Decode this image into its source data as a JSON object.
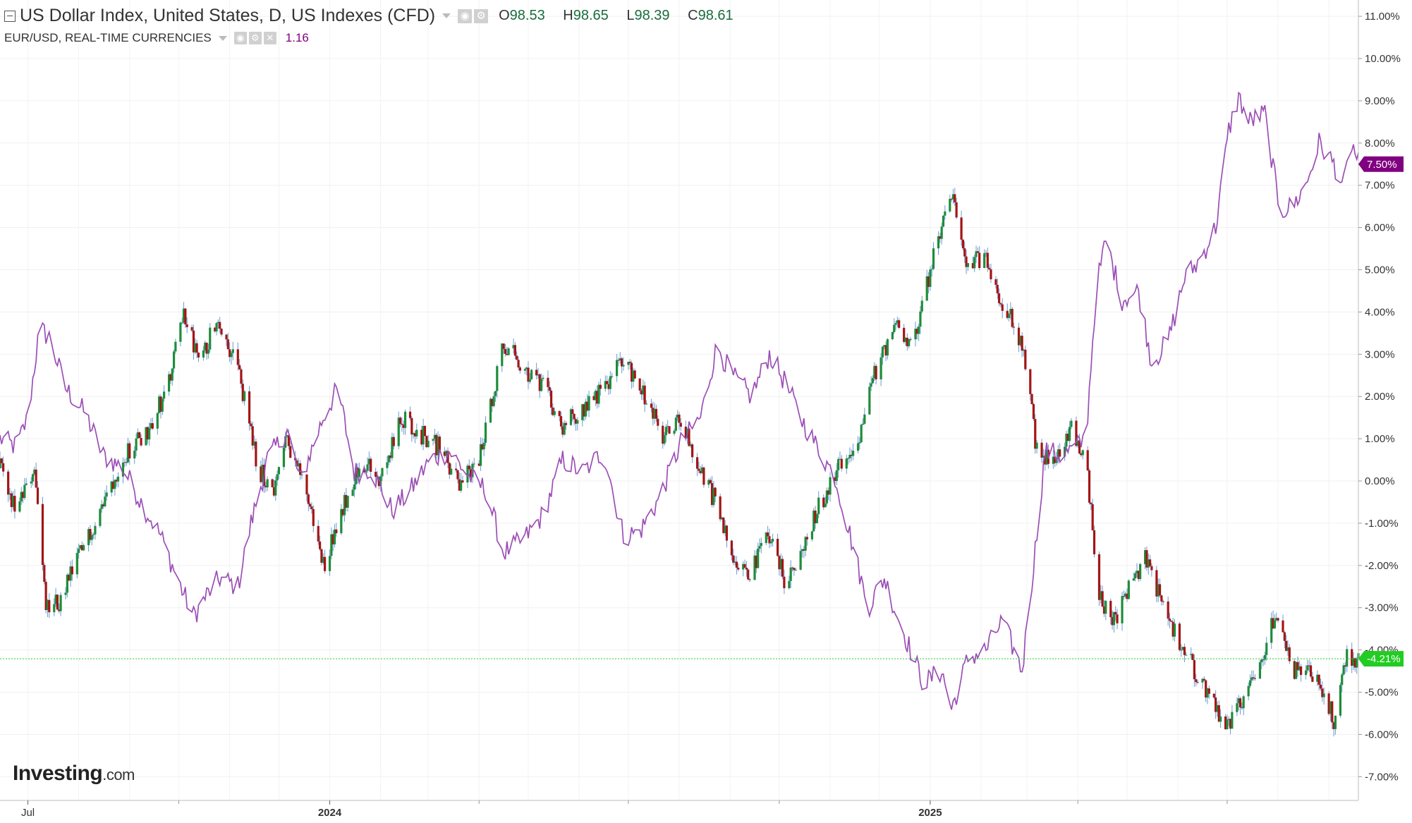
{
  "header": {
    "title": "US Dollar Index, United States, D, US Indexes (CFD)",
    "ohlc": [
      {
        "key": "O",
        "value": "98.53"
      },
      {
        "key": "H",
        "value": "98.65"
      },
      {
        "key": "L",
        "value": "98.39"
      },
      {
        "key": "C",
        "value": "98.61"
      }
    ],
    "compare_title": "EUR/USD, REAL-TIME CURRENCIES",
    "compare_value": "1.16"
  },
  "logo": {
    "main": "Investing",
    "suffix": ".com"
  },
  "chart_data": {
    "type": "line",
    "title": "US Dollar Index, United States, D, US Indexes (CFD)",
    "ylim": [
      -7.5,
      11.5
    ],
    "y_tick_labels": [
      "11.00%",
      "10.00%",
      "9.00%",
      "8.00%",
      "7.00%",
      "6.00%",
      "5.00%",
      "4.00%",
      "3.00%",
      "2.00%",
      "1.00%",
      "0.00%",
      "-1.00%",
      "-2.00%",
      "-3.00%",
      "-4.00%",
      "-5.00%",
      "-6.00%",
      "-7.00%"
    ],
    "y_ticks": [
      11,
      10,
      9,
      8,
      7,
      6,
      5,
      4,
      3,
      2,
      1,
      0,
      -1,
      -2,
      -3,
      -4,
      -5,
      -6,
      -7
    ],
    "x_tick_labels": [
      "Jul",
      "2024",
      "2025"
    ],
    "x_tick_dates": [
      "2023-07-01",
      "2024-01-01",
      "2025-01-01"
    ],
    "x_range": [
      "2023-06-14",
      "2025-09-19"
    ],
    "grid": true,
    "colors": {
      "up": "#1e8c3a",
      "down": "#a31515",
      "compare": "#9b4fb5",
      "last_dxy": "#22cc22",
      "last_eur": "#800080"
    },
    "series": [
      {
        "name": "US Dollar Index",
        "last_label": "-4.21%",
        "last_value": -4.21,
        "points": [
          [
            "2023-06-14",
            0.3
          ],
          [
            "2023-06-24",
            -0.8
          ],
          [
            "2023-07-05",
            0.3
          ],
          [
            "2023-07-12",
            -3.0
          ],
          [
            "2023-07-20",
            -2.9
          ],
          [
            "2023-08-01",
            -1.8
          ],
          [
            "2023-08-15",
            -0.6
          ],
          [
            "2023-08-28",
            0.6
          ],
          [
            "2023-09-12",
            1.2
          ],
          [
            "2023-09-25",
            2.3
          ],
          [
            "2023-10-04",
            4.0
          ],
          [
            "2023-10-14",
            2.7
          ],
          [
            "2023-10-24",
            3.9
          ],
          [
            "2023-11-06",
            2.7
          ],
          [
            "2023-11-18",
            0.3
          ],
          [
            "2023-11-28",
            -0.2
          ],
          [
            "2023-12-06",
            1.0
          ],
          [
            "2023-12-18",
            -0.3
          ],
          [
            "2023-12-28",
            -2.0
          ],
          [
            "2024-01-10",
            -0.5
          ],
          [
            "2024-01-20",
            0.5
          ],
          [
            "2024-02-01",
            0.0
          ],
          [
            "2024-02-14",
            1.5
          ],
          [
            "2024-02-26",
            1.1
          ],
          [
            "2024-03-08",
            0.8
          ],
          [
            "2024-03-20",
            -0.1
          ],
          [
            "2024-04-01",
            0.5
          ],
          [
            "2024-04-16",
            3.3
          ],
          [
            "2024-04-28",
            2.7
          ],
          [
            "2024-05-10",
            2.2
          ],
          [
            "2024-05-22",
            1.3
          ],
          [
            "2024-06-03",
            1.7
          ],
          [
            "2024-06-18",
            2.3
          ],
          [
            "2024-06-28",
            2.9
          ],
          [
            "2024-07-10",
            2.1
          ],
          [
            "2024-07-22",
            1.0
          ],
          [
            "2024-08-01",
            1.5
          ],
          [
            "2024-08-12",
            0.4
          ],
          [
            "2024-08-22",
            -0.4
          ],
          [
            "2024-09-02",
            -1.7
          ],
          [
            "2024-09-14",
            -2.2
          ],
          [
            "2024-09-24",
            -1.2
          ],
          [
            "2024-10-04",
            -2.3
          ],
          [
            "2024-10-14",
            -1.8
          ],
          [
            "2024-10-25",
            -0.6
          ],
          [
            "2024-11-06",
            0.3
          ],
          [
            "2024-11-18",
            1.0
          ],
          [
            "2024-11-28",
            2.5
          ],
          [
            "2024-12-10",
            3.7
          ],
          [
            "2024-12-22",
            3.3
          ],
          [
            "2025-01-03",
            5.3
          ],
          [
            "2025-01-14",
            6.8
          ],
          [
            "2025-01-24",
            5.0
          ],
          [
            "2025-02-03",
            5.4
          ],
          [
            "2025-02-14",
            4.2
          ],
          [
            "2025-02-26",
            3.3
          ],
          [
            "2025-03-06",
            1.0
          ],
          [
            "2025-03-16",
            0.3
          ],
          [
            "2025-03-28",
            1.3
          ],
          [
            "2025-04-06",
            0.5
          ],
          [
            "2025-04-14",
            -2.8
          ],
          [
            "2025-04-24",
            -3.3
          ],
          [
            "2025-05-04",
            -2.3
          ],
          [
            "2025-05-13",
            -1.8
          ],
          [
            "2025-05-24",
            -3.2
          ],
          [
            "2025-06-06",
            -4.1
          ],
          [
            "2025-06-18",
            -5.0
          ],
          [
            "2025-06-30",
            -5.9
          ],
          [
            "2025-07-10",
            -5.2
          ],
          [
            "2025-07-21",
            -4.3
          ],
          [
            "2025-07-31",
            -3.0
          ],
          [
            "2025-08-09",
            -4.5
          ],
          [
            "2025-08-20",
            -4.6
          ],
          [
            "2025-08-30",
            -5.0
          ],
          [
            "2025-09-05",
            -5.8
          ],
          [
            "2025-09-11",
            -4.2
          ],
          [
            "2025-09-19",
            -4.21
          ]
        ]
      },
      {
        "name": "EUR/USD",
        "last_label": "7.50%",
        "last_value": 7.5,
        "points": [
          [
            "2023-06-14",
            1.0
          ],
          [
            "2023-06-24",
            0.8
          ],
          [
            "2023-07-01",
            1.5
          ],
          [
            "2023-07-08",
            3.6
          ],
          [
            "2023-07-14",
            3.4
          ],
          [
            "2023-07-24",
            2.2
          ],
          [
            "2023-08-05",
            1.6
          ],
          [
            "2023-08-16",
            0.6
          ],
          [
            "2023-08-28",
            0.3
          ],
          [
            "2023-09-08",
            -0.5
          ],
          [
            "2023-09-20",
            -1.3
          ],
          [
            "2023-10-02",
            -2.5
          ],
          [
            "2023-10-10",
            -3.2
          ],
          [
            "2023-10-18",
            -2.7
          ],
          [
            "2023-10-26",
            -2.3
          ],
          [
            "2023-11-06",
            -2.5
          ],
          [
            "2023-11-14",
            -1.0
          ],
          [
            "2023-11-24",
            0.5
          ],
          [
            "2023-12-06",
            1.2
          ],
          [
            "2023-12-14",
            0.0
          ],
          [
            "2023-12-28",
            1.5
          ],
          [
            "2024-01-06",
            2.2
          ],
          [
            "2024-01-16",
            0.2
          ],
          [
            "2024-01-26",
            0.3
          ],
          [
            "2024-02-08",
            -0.7
          ],
          [
            "2024-02-18",
            -0.3
          ],
          [
            "2024-03-02",
            0.5
          ],
          [
            "2024-03-14",
            0.7
          ],
          [
            "2024-03-26",
            0.1
          ],
          [
            "2024-04-05",
            -0.2
          ],
          [
            "2024-04-16",
            -1.7
          ],
          [
            "2024-04-28",
            -1.4
          ],
          [
            "2024-05-10",
            -0.8
          ],
          [
            "2024-05-22",
            0.5
          ],
          [
            "2024-06-03",
            0.2
          ],
          [
            "2024-06-16",
            0.7
          ],
          [
            "2024-06-28",
            -1.3
          ],
          [
            "2024-07-08",
            -1.2
          ],
          [
            "2024-07-20",
            -0.4
          ],
          [
            "2024-08-02",
            0.9
          ],
          [
            "2024-08-14",
            1.5
          ],
          [
            "2024-08-24",
            3.2
          ],
          [
            "2024-09-02",
            2.5
          ],
          [
            "2024-09-14",
            2.0
          ],
          [
            "2024-09-25",
            3.0
          ],
          [
            "2024-10-05",
            2.3
          ],
          [
            "2024-10-14",
            1.5
          ],
          [
            "2024-10-24",
            0.8
          ],
          [
            "2024-11-04",
            0.1
          ],
          [
            "2024-11-14",
            -1.4
          ],
          [
            "2024-11-24",
            -3.0
          ],
          [
            "2024-12-04",
            -2.3
          ],
          [
            "2024-12-14",
            -3.4
          ],
          [
            "2024-12-28",
            -4.8
          ],
          [
            "2025-01-08",
            -4.5
          ],
          [
            "2025-01-14",
            -5.4
          ],
          [
            "2025-01-24",
            -4.2
          ],
          [
            "2025-02-04",
            -4.0
          ],
          [
            "2025-02-14",
            -3.3
          ],
          [
            "2025-02-26",
            -4.5
          ],
          [
            "2025-03-05",
            -2.0
          ],
          [
            "2025-03-12",
            0.7
          ],
          [
            "2025-03-22",
            0.6
          ],
          [
            "2025-03-31",
            0.8
          ],
          [
            "2025-04-06",
            1.0
          ],
          [
            "2025-04-12",
            4.5
          ],
          [
            "2025-04-18",
            5.7
          ],
          [
            "2025-04-28",
            4.3
          ],
          [
            "2025-05-08",
            4.5
          ],
          [
            "2025-05-16",
            2.8
          ],
          [
            "2025-05-26",
            3.3
          ],
          [
            "2025-06-05",
            4.8
          ],
          [
            "2025-06-14",
            5.2
          ],
          [
            "2025-06-24",
            6.0
          ],
          [
            "2025-07-02",
            8.3
          ],
          [
            "2025-07-08",
            9.1
          ],
          [
            "2025-07-14",
            8.5
          ],
          [
            "2025-07-24",
            8.7
          ],
          [
            "2025-08-02",
            6.4
          ],
          [
            "2025-08-10",
            6.5
          ],
          [
            "2025-08-18",
            7.0
          ],
          [
            "2025-08-26",
            8.0
          ],
          [
            "2025-09-04",
            7.5
          ],
          [
            "2025-09-10",
            7.0
          ],
          [
            "2025-09-15",
            8.0
          ],
          [
            "2025-09-19",
            7.5
          ]
        ]
      }
    ]
  }
}
